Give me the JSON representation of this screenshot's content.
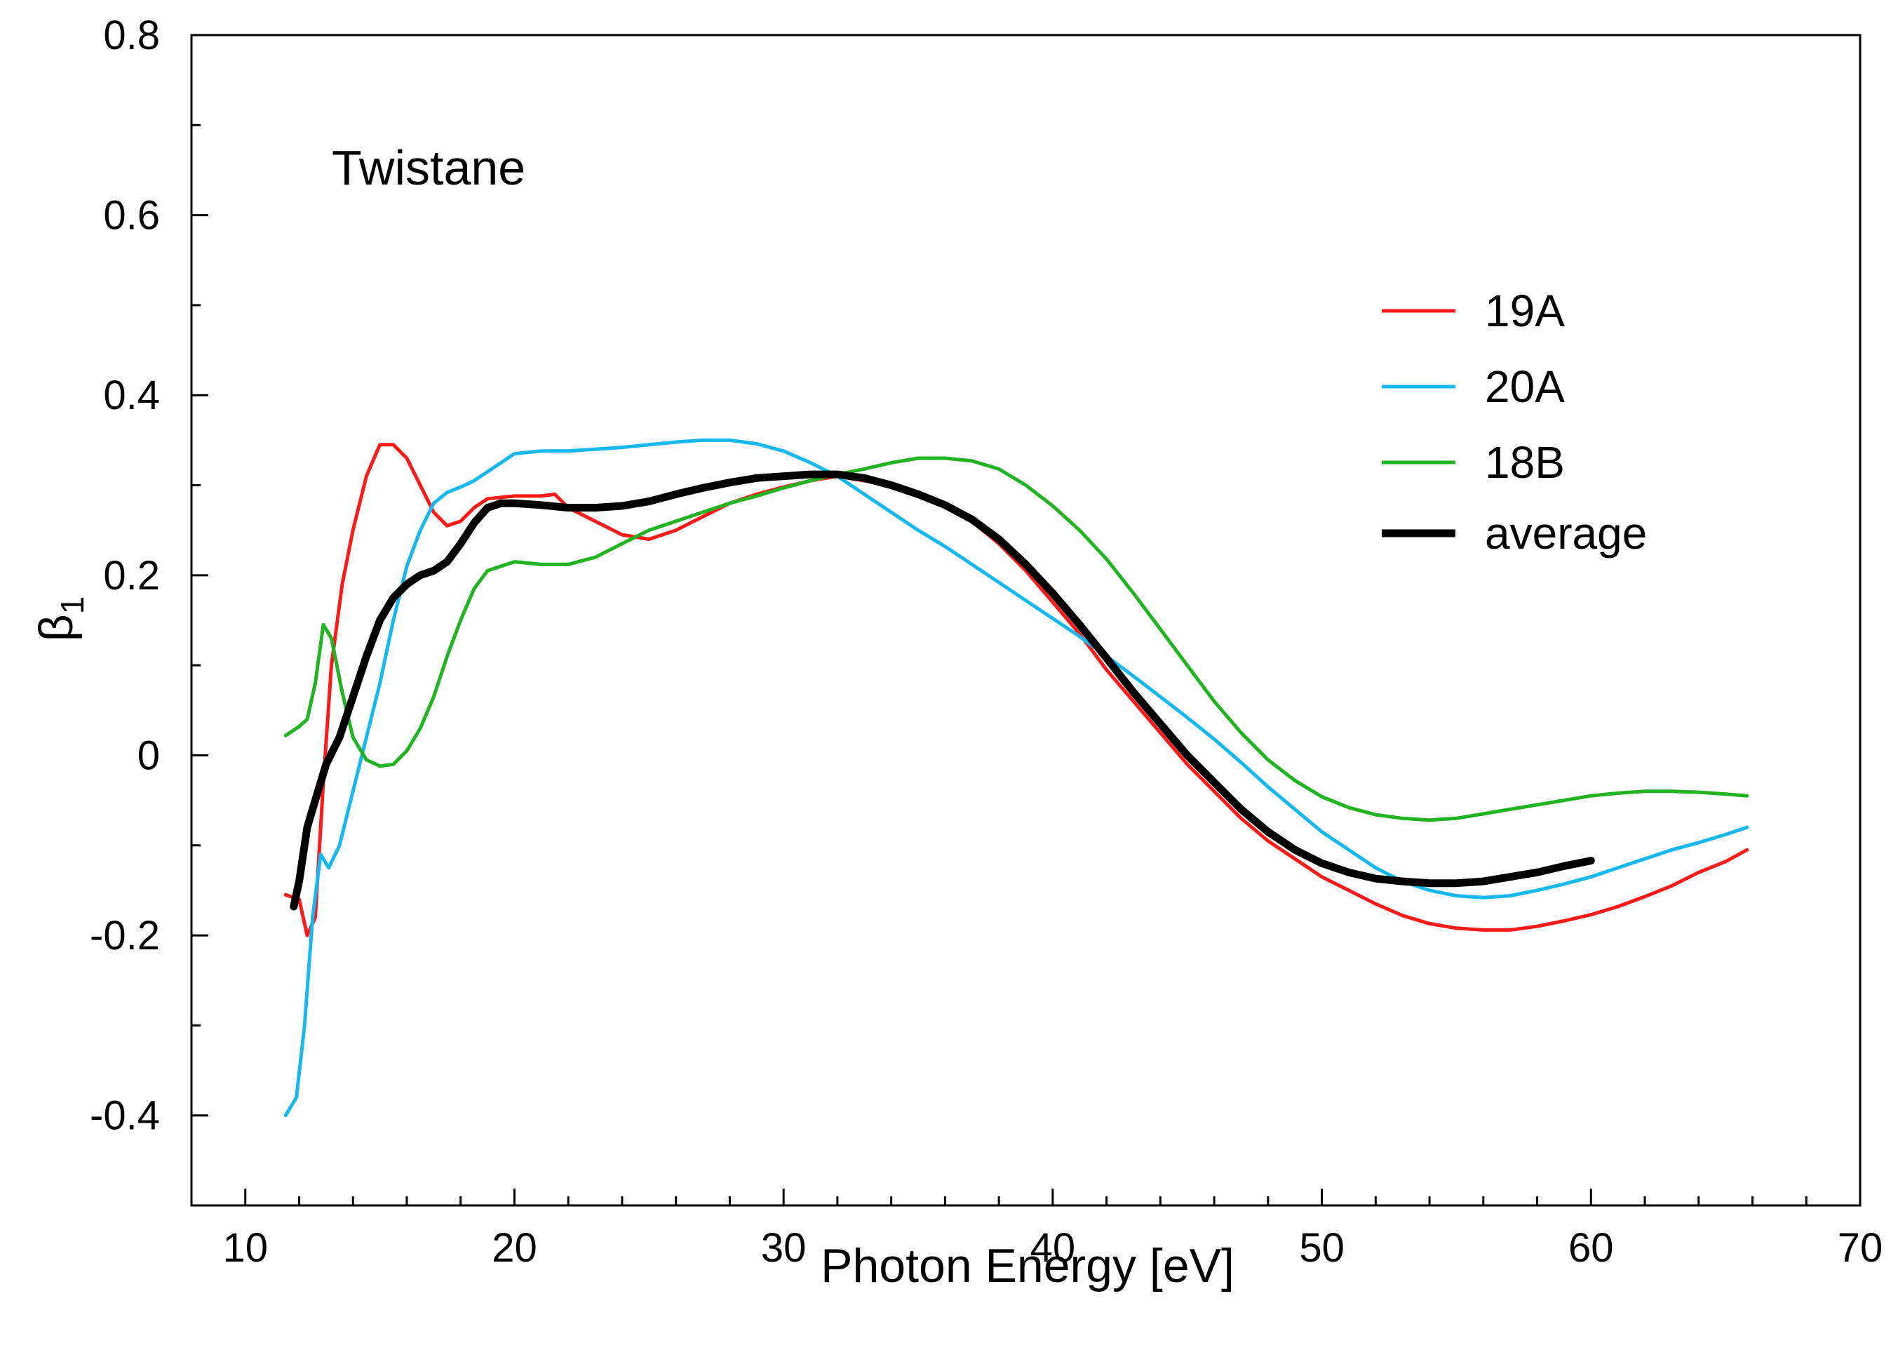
{
  "chart_data": {
    "type": "line",
    "title": "",
    "annotation": "Twistane",
    "xlabel": "Photon Energy [eV]",
    "ylabel_symbol": "β",
    "ylabel_subscript": "1",
    "xlim": [
      8,
      70
    ],
    "ylim": [
      -0.5,
      0.8
    ],
    "xticks": [
      10,
      20,
      30,
      40,
      50,
      60,
      70
    ],
    "xtick_labels": [
      "10",
      "20",
      "30",
      "40",
      "50",
      "60",
      "70"
    ],
    "xminor_ticks": [
      12,
      14,
      16,
      18,
      22,
      24,
      26,
      28,
      32,
      34,
      36,
      38,
      42,
      44,
      46,
      48,
      52,
      54,
      56,
      58,
      62,
      64,
      66,
      68
    ],
    "yticks": [
      -0.4,
      -0.2,
      0,
      0.2,
      0.4,
      0.6,
      0.8
    ],
    "ytick_labels": [
      "-0.4",
      "-0.2",
      "0",
      "0.2",
      "0.4",
      "0.6",
      "0.8"
    ],
    "yminor_ticks": [
      -0.3,
      -0.1,
      0.1,
      0.3,
      0.5,
      0.7
    ],
    "grid": false,
    "legend_position": "top-right",
    "series": [
      {
        "name": "19A",
        "color": "#ff1a1a",
        "x": [
          11.5,
          12.0,
          12.3,
          12.6,
          12.9,
          13.2,
          13.6,
          14.0,
          14.5,
          15.0,
          15.5,
          16.0,
          16.5,
          17.0,
          17.5,
          18.0,
          18.5,
          19.0,
          20.0,
          21.0,
          21.5,
          22.0,
          23.0,
          24.0,
          25.0,
          26.0,
          27.0,
          28.0,
          29.0,
          30.0,
          31.0,
          32.0,
          33.0,
          34.0,
          35.0,
          36.0,
          37.0,
          38.0,
          39.0,
          40.0,
          41.0,
          42.0,
          43.0,
          44.0,
          45.0,
          46.0,
          47.0,
          48.0,
          49.0,
          50.0,
          51.0,
          52.0,
          53.0,
          54.0,
          55.0,
          56.0,
          57.0,
          58.0,
          59.0,
          60.0,
          61.0,
          62.0,
          63.0,
          64.0,
          65.0,
          65.8
        ],
        "y": [
          -0.155,
          -0.16,
          -0.2,
          -0.18,
          -0.03,
          0.1,
          0.19,
          0.25,
          0.31,
          0.345,
          0.345,
          0.33,
          0.3,
          0.27,
          0.255,
          0.26,
          0.275,
          0.285,
          0.288,
          0.288,
          0.29,
          0.275,
          0.26,
          0.245,
          0.24,
          0.25,
          0.265,
          0.28,
          0.29,
          0.298,
          0.305,
          0.31,
          0.305,
          0.3,
          0.29,
          0.28,
          0.26,
          0.235,
          0.205,
          0.17,
          0.135,
          0.095,
          0.06,
          0.025,
          -0.01,
          -0.04,
          -0.07,
          -0.095,
          -0.115,
          -0.135,
          -0.15,
          -0.165,
          -0.178,
          -0.187,
          -0.192,
          -0.194,
          -0.194,
          -0.19,
          -0.184,
          -0.177,
          -0.168,
          -0.157,
          -0.145,
          -0.13,
          -0.118,
          -0.105
        ]
      },
      {
        "name": "20A",
        "color": "#17b8f0",
        "x": [
          11.5,
          11.9,
          12.2,
          12.5,
          12.8,
          13.1,
          13.5,
          14.0,
          14.5,
          15.0,
          15.5,
          16.0,
          16.5,
          17.0,
          17.5,
          18.0,
          18.5,
          19.0,
          19.5,
          20.0,
          21.0,
          22.0,
          23.0,
          24.0,
          25.0,
          26.0,
          27.0,
          28.0,
          29.0,
          30.0,
          31.0,
          32.0,
          33.0,
          34.0,
          35.0,
          36.0,
          37.0,
          38.0,
          39.0,
          40.0,
          41.0,
          42.0,
          43.0,
          44.0,
          45.0,
          46.0,
          47.0,
          48.0,
          49.0,
          50.0,
          51.0,
          52.0,
          53.0,
          54.0,
          55.0,
          56.0,
          57.0,
          58.0,
          59.0,
          60.0,
          61.0,
          62.0,
          63.0,
          64.0,
          65.0,
          65.8
        ],
        "y": [
          -0.4,
          -0.38,
          -0.3,
          -0.18,
          -0.11,
          -0.125,
          -0.1,
          -0.04,
          0.02,
          0.08,
          0.15,
          0.21,
          0.25,
          0.28,
          0.292,
          0.298,
          0.305,
          0.315,
          0.325,
          0.335,
          0.338,
          0.338,
          0.34,
          0.342,
          0.345,
          0.348,
          0.35,
          0.35,
          0.346,
          0.338,
          0.325,
          0.31,
          0.29,
          0.27,
          0.25,
          0.232,
          0.212,
          0.192,
          0.172,
          0.152,
          0.132,
          0.11,
          0.088,
          0.065,
          0.042,
          0.018,
          -0.008,
          -0.035,
          -0.06,
          -0.085,
          -0.105,
          -0.125,
          -0.14,
          -0.15,
          -0.156,
          -0.158,
          -0.156,
          -0.15,
          -0.143,
          -0.135,
          -0.125,
          -0.115,
          -0.105,
          -0.097,
          -0.088,
          -0.08
        ]
      },
      {
        "name": "18B",
        "color": "#21b321",
        "x": [
          11.5,
          12.0,
          12.3,
          12.6,
          12.9,
          13.2,
          13.6,
          14.0,
          14.5,
          15.0,
          15.5,
          16.0,
          16.5,
          17.0,
          17.5,
          18.0,
          18.5,
          19.0,
          20.0,
          21.0,
          22.0,
          23.0,
          24.0,
          25.0,
          26.0,
          27.0,
          28.0,
          29.0,
          30.0,
          31.0,
          32.0,
          33.0,
          34.0,
          35.0,
          36.0,
          37.0,
          38.0,
          39.0,
          40.0,
          41.0,
          42.0,
          43.0,
          44.0,
          45.0,
          46.0,
          47.0,
          48.0,
          49.0,
          50.0,
          51.0,
          52.0,
          53.0,
          54.0,
          55.0,
          56.0,
          57.0,
          58.0,
          59.0,
          60.0,
          61.0,
          62.0,
          63.0,
          64.0,
          65.0,
          65.8
        ],
        "y": [
          0.022,
          0.032,
          0.04,
          0.08,
          0.145,
          0.13,
          0.07,
          0.02,
          -0.005,
          -0.012,
          -0.01,
          0.005,
          0.03,
          0.065,
          0.11,
          0.15,
          0.185,
          0.205,
          0.215,
          0.212,
          0.212,
          0.22,
          0.235,
          0.25,
          0.26,
          0.27,
          0.28,
          0.288,
          0.297,
          0.305,
          0.312,
          0.318,
          0.325,
          0.33,
          0.33,
          0.327,
          0.318,
          0.3,
          0.277,
          0.25,
          0.218,
          0.18,
          0.14,
          0.1,
          0.06,
          0.025,
          -0.005,
          -0.028,
          -0.046,
          -0.058,
          -0.066,
          -0.07,
          -0.072,
          -0.07,
          -0.065,
          -0.06,
          -0.055,
          -0.05,
          -0.045,
          -0.042,
          -0.04,
          -0.04,
          -0.041,
          -0.043,
          -0.045
        ]
      },
      {
        "name": "average",
        "color": "#000000",
        "x": [
          11.8,
          12.0,
          12.3,
          12.7,
          13.0,
          13.5,
          14.0,
          14.5,
          15.0,
          15.5,
          16.0,
          16.5,
          17.0,
          17.5,
          18.0,
          18.5,
          19.0,
          19.5,
          20.0,
          21.0,
          22.0,
          23.0,
          24.0,
          25.0,
          26.0,
          27.0,
          28.0,
          29.0,
          30.0,
          31.0,
          32.0,
          33.0,
          34.0,
          35.0,
          36.0,
          37.0,
          38.0,
          39.0,
          40.0,
          41.0,
          42.0,
          43.0,
          44.0,
          45.0,
          46.0,
          47.0,
          48.0,
          49.0,
          50.0,
          51.0,
          52.0,
          53.0,
          54.0,
          55.0,
          56.0,
          57.0,
          58.0,
          59.0,
          60.0
        ],
        "y": [
          -0.168,
          -0.14,
          -0.08,
          -0.04,
          -0.01,
          0.02,
          0.065,
          0.11,
          0.15,
          0.175,
          0.19,
          0.2,
          0.205,
          0.215,
          0.235,
          0.258,
          0.275,
          0.28,
          0.28,
          0.278,
          0.275,
          0.275,
          0.277,
          0.282,
          0.29,
          0.297,
          0.303,
          0.308,
          0.31,
          0.312,
          0.312,
          0.308,
          0.3,
          0.29,
          0.278,
          0.262,
          0.24,
          0.212,
          0.18,
          0.145,
          0.108,
          0.07,
          0.035,
          0.0,
          -0.03,
          -0.06,
          -0.085,
          -0.105,
          -0.12,
          -0.13,
          -0.137,
          -0.14,
          -0.142,
          -0.142,
          -0.14,
          -0.135,
          -0.13,
          -0.123,
          -0.117
        ]
      }
    ]
  }
}
